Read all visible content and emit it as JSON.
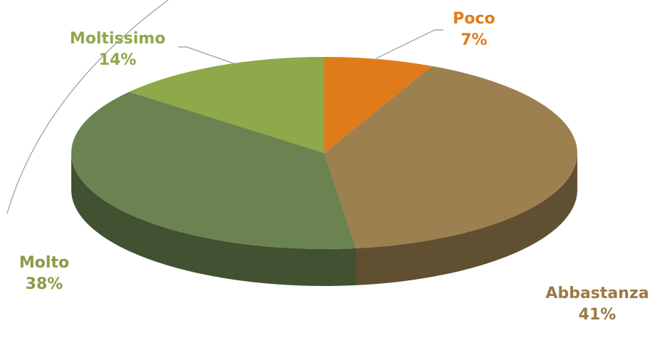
{
  "chart_data": {
    "type": "pie",
    "categories": [
      "Poco",
      "Abbastanza",
      "Molto",
      "Moltissimo"
    ],
    "values": [
      7,
      41,
      38,
      14
    ],
    "value_labels": [
      "7%",
      "41%",
      "38%",
      "14%"
    ],
    "colors": [
      "#e07b1a",
      "#9c8050",
      "#6b8350",
      "#8ea84a"
    ],
    "label_colors": [
      "#e07b1a",
      "#9c7a45",
      "#8a9a48",
      "#8ea84a"
    ]
  }
}
